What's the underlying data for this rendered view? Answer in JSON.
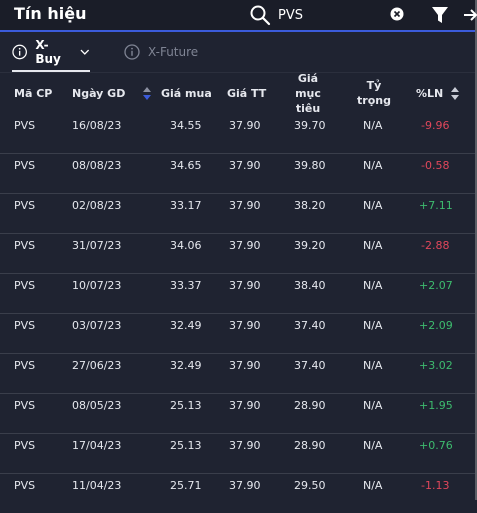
{
  "header": {
    "title": "Tín hiệu",
    "search_value": "PVS"
  },
  "tabs": [
    {
      "label": "X-Buy",
      "active": true
    },
    {
      "label": "X-Future",
      "active": false
    }
  ],
  "columns": {
    "ma_cp": "Mã CP",
    "ngay_gd": "Ngày GD",
    "gia_mua": "Giá mua",
    "gia_tt": "Giá TT",
    "gia_muc_tieu_1": "Giá mục",
    "gia_muc_tieu_2": "tiêu",
    "ty_trong_1": "Tỷ",
    "ty_trong_2": "trọng",
    "pct_ln": "%LN"
  },
  "rows": [
    {
      "ma_cp": "PVS",
      "ngay_gd": "16/08/23",
      "gia_mua": "34.55",
      "gia_tt": "37.90",
      "gia_muc_tieu": "39.70",
      "ty_trong": "N/A",
      "pct_ln": "-9.96"
    },
    {
      "ma_cp": "PVS",
      "ngay_gd": "08/08/23",
      "gia_mua": "34.65",
      "gia_tt": "37.90",
      "gia_muc_tieu": "39.80",
      "ty_trong": "N/A",
      "pct_ln": "-0.58"
    },
    {
      "ma_cp": "PVS",
      "ngay_gd": "02/08/23",
      "gia_mua": "33.17",
      "gia_tt": "37.90",
      "gia_muc_tieu": "38.20",
      "ty_trong": "N/A",
      "pct_ln": "+7.11"
    },
    {
      "ma_cp": "PVS",
      "ngay_gd": "31/07/23",
      "gia_mua": "34.06",
      "gia_tt": "37.90",
      "gia_muc_tieu": "39.20",
      "ty_trong": "N/A",
      "pct_ln": "-2.88"
    },
    {
      "ma_cp": "PVS",
      "ngay_gd": "10/07/23",
      "gia_mua": "33.37",
      "gia_tt": "37.90",
      "gia_muc_tieu": "38.40",
      "ty_trong": "N/A",
      "pct_ln": "+2.07"
    },
    {
      "ma_cp": "PVS",
      "ngay_gd": "03/07/23",
      "gia_mua": "32.49",
      "gia_tt": "37.90",
      "gia_muc_tieu": "37.40",
      "ty_trong": "N/A",
      "pct_ln": "+2.09"
    },
    {
      "ma_cp": "PVS",
      "ngay_gd": "27/06/23",
      "gia_mua": "32.49",
      "gia_tt": "37.90",
      "gia_muc_tieu": "37.40",
      "ty_trong": "N/A",
      "pct_ln": "+3.02"
    },
    {
      "ma_cp": "PVS",
      "ngay_gd": "08/05/23",
      "gia_mua": "25.13",
      "gia_tt": "37.90",
      "gia_muc_tieu": "28.90",
      "ty_trong": "N/A",
      "pct_ln": "+1.95"
    },
    {
      "ma_cp": "PVS",
      "ngay_gd": "17/04/23",
      "gia_mua": "25.13",
      "gia_tt": "37.90",
      "gia_muc_tieu": "28.90",
      "ty_trong": "N/A",
      "pct_ln": "+0.76"
    },
    {
      "ma_cp": "PVS",
      "ngay_gd": "11/04/23",
      "gia_mua": "25.71",
      "gia_tt": "37.90",
      "gia_muc_tieu": "29.50",
      "ty_trong": "N/A",
      "pct_ln": "-1.13"
    }
  ],
  "colors": {
    "accent": "#3b5bdb",
    "positive": "#3dbb6e",
    "negative": "#e0475b",
    "background": "#1f2331"
  },
  "icons": {
    "search": "search-icon",
    "clear": "clear-icon",
    "filter": "filter-icon",
    "export": "arrow-right-icon",
    "tab": "info-icon",
    "dropdown": "chevron-down-icon",
    "sort": "sort-icon"
  }
}
